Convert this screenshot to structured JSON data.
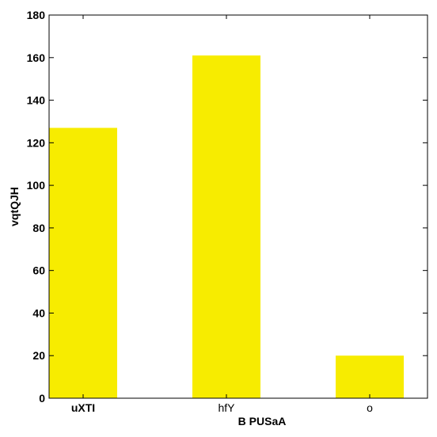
{
  "chart_data": {
    "type": "bar",
    "categories": [
      "uXTI",
      "hfY",
      "o"
    ],
    "category_label_bold": [
      true,
      false,
      false
    ],
    "values": [
      127,
      161,
      20
    ],
    "xlabel": "B PUSaA",
    "ylabel": "vqtQJH",
    "ylim": [
      0,
      180
    ],
    "yticks": [
      0,
      20,
      40,
      60,
      80,
      100,
      120,
      140,
      160,
      180
    ],
    "bar_color": "#f7ec00",
    "grid": false,
    "legend": "none"
  }
}
